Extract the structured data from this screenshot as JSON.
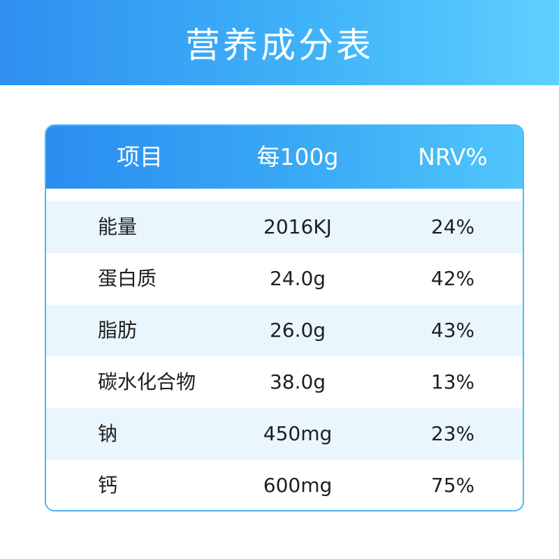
{
  "banner": {
    "title": "营养成分表"
  },
  "table": {
    "headers": [
      "项目",
      "每100g",
      "NRV%"
    ],
    "rows": [
      {
        "name": "能量",
        "per100g": "2016KJ",
        "nrv": "24%"
      },
      {
        "name": "蛋白质",
        "per100g": "24.0g",
        "nrv": "42%"
      },
      {
        "name": "脂肪",
        "per100g": "26.0g",
        "nrv": "43%"
      },
      {
        "name": "碳水化合物",
        "per100g": "38.0g",
        "nrv": "13%"
      },
      {
        "name": "钠",
        "per100g": "450mg",
        "nrv": "23%"
      },
      {
        "name": "钙",
        "per100g": "600mg",
        "nrv": "75%"
      }
    ]
  },
  "colors": {
    "banner": "#3fb2f8",
    "header": "#3aaaf5",
    "row_shade": "#eaf6fd",
    "border": "#4db7f5"
  }
}
